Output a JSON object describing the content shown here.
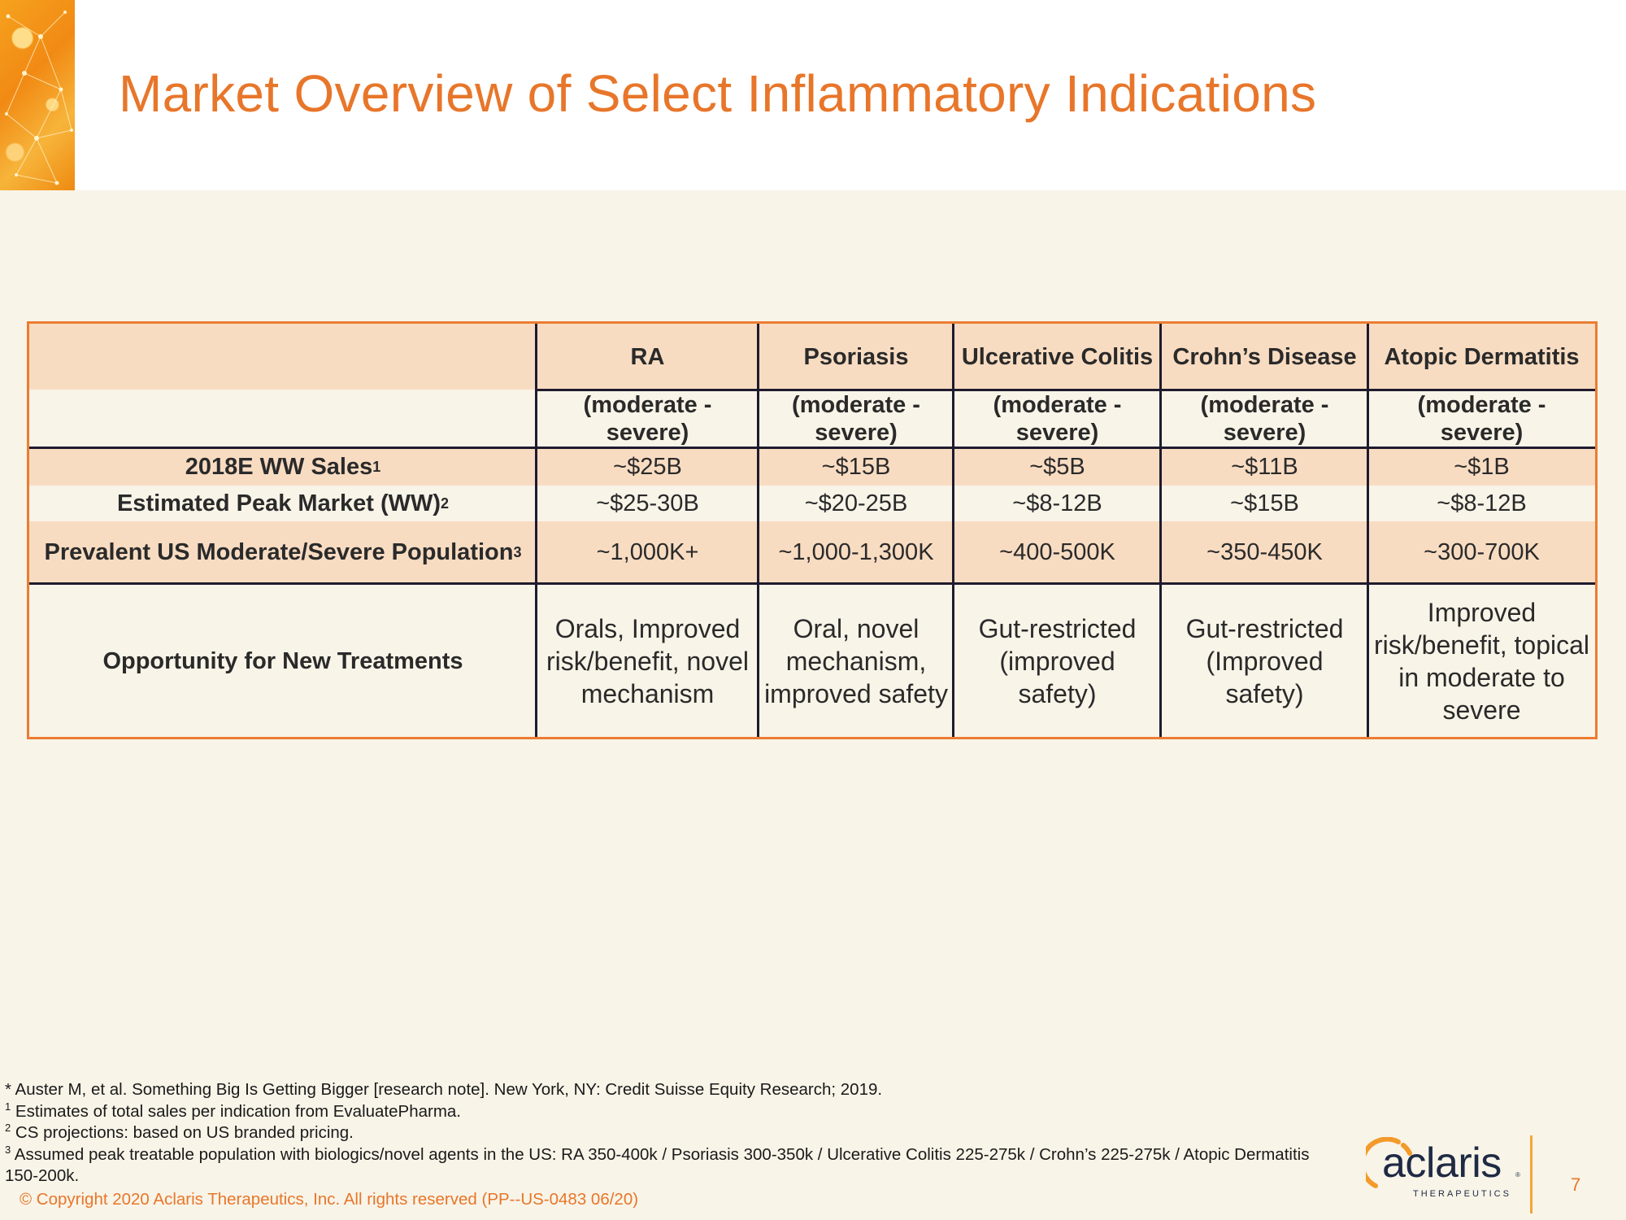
{
  "title": "Market Overview of Select Inflammatory Indications",
  "colors": {
    "accent": "#e8762a",
    "table_border": "#ec7c32",
    "row_shade": "#f8dcc2",
    "background": "#f8f4e8",
    "grid": "#1f1b2e"
  },
  "table": {
    "columns": [
      {
        "name": "RA",
        "sub": "(moderate - severe)"
      },
      {
        "name": "Psoriasis",
        "sub": "(moderate - severe)"
      },
      {
        "name": "Ulcerative Colitis",
        "sub": "(moderate - severe)"
      },
      {
        "name": "Crohn’s Disease",
        "sub": "(moderate - severe)"
      },
      {
        "name": "Atopic Dermatitis",
        "sub": "(moderate - severe)"
      }
    ],
    "rows": [
      {
        "label": "2018E WW Sales",
        "sup": "1",
        "values": [
          "~$25B",
          "~$15B",
          "~$5B",
          "~$11B",
          "~$1B"
        ]
      },
      {
        "label": "Estimated Peak Market (WW)",
        "sup": "2",
        "values": [
          "~$25-30B",
          "~$20-25B",
          "~$8-12B",
          "~$15B",
          "~$8-12B"
        ]
      },
      {
        "label": "Prevalent US Moderate/Severe Population",
        "sup": "3",
        "values": [
          "~1,000K+",
          "~1,000-1,300K",
          "~400-500K",
          "~350-450K",
          "~300-700K"
        ]
      },
      {
        "label": "Opportunity for New Treatments",
        "sup": "",
        "values": [
          "Orals, Improved risk/benefit, novel mechanism",
          "Oral, novel mechanism, improved safety",
          "Gut-restricted (improved safety)",
          "Gut-restricted (Improved safety)",
          "Improved risk/benefit, topical in moderate to severe"
        ]
      }
    ]
  },
  "footnotes": {
    "star": "* Auster M, et al. Something Big Is Getting Bigger [research note]. New York, NY: Credit Suisse Equity Research; 2019.",
    "n1_mark": "1",
    "n1": " Estimates of total sales per indication from EvaluatePharma.",
    "n2_mark": "2",
    "n2": " CS projections: based on US branded pricing.",
    "n3_mark": "3",
    "n3": " Assumed peak treatable population with biologics/novel agents in the US: RA 350-400k / Psoriasis 300-350k / Ulcerative Colitis 225-275k / Crohn’s 225-275k / Atopic Dermatitis 150-200k."
  },
  "copyright": "© Copyright 2020 Aclaris Therapeutics, Inc. All rights reserved (PP--US-0483 06/20)",
  "logo": {
    "word": "aclaris",
    "sub": "THERAPEUTICS",
    "tm": "®"
  },
  "page_number": "7"
}
